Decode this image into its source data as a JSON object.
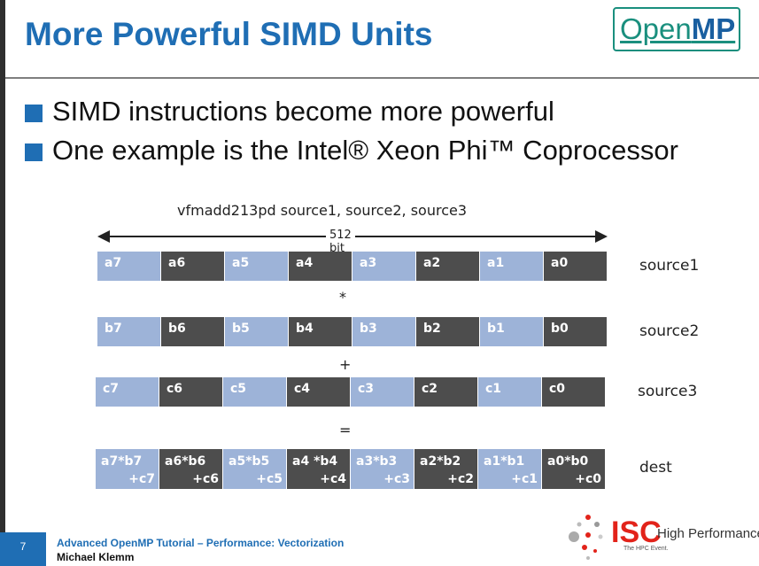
{
  "slide": {
    "title": "More Powerful SIMD Units",
    "bullets": [
      "SIMD instructions become more powerful",
      "One example is the Intel® Xeon Phi™ Coprocessor"
    ]
  },
  "logo": {
    "open": "Open",
    "mp": "MP"
  },
  "diagram": {
    "instruction": "vfmadd213pd source1, source2, source3",
    "bit_width": "512 bit",
    "ops": [
      "*",
      "+",
      "="
    ],
    "rows": [
      {
        "label": "source1",
        "cells": [
          "a7",
          "a6",
          "a5",
          "a4",
          "a3",
          "a2",
          "a1",
          "a0"
        ]
      },
      {
        "label": "source2",
        "cells": [
          "b7",
          "b6",
          "b5",
          "b4",
          "b3",
          "b2",
          "b1",
          "b0"
        ]
      },
      {
        "label": "source3",
        "cells": [
          "c7",
          "c6",
          "c5",
          "c4",
          "c3",
          "c2",
          "c1",
          "c0"
        ]
      }
    ],
    "dest": {
      "label": "dest",
      "cells": [
        {
          "l1": "a7*b7",
          "l2": "+c7"
        },
        {
          "l1": "a6*b6",
          "l2": "+c6"
        },
        {
          "l1": "a5*b5",
          "l2": "+c5"
        },
        {
          "l1": "a4 *b4",
          "l2": "+c4"
        },
        {
          "l1": "a3*b3",
          "l2": "+c3"
        },
        {
          "l1": "a2*b2",
          "l2": "+c2"
        },
        {
          "l1": "a1*b1",
          "l2": "+c1"
        },
        {
          "l1": "a0*b0",
          "l2": "+c0"
        }
      ]
    }
  },
  "footer": {
    "page_number": "7",
    "line1": "Advanced OpenMP Tutorial – Performance: Vectorization",
    "line2": "Michael Klemm"
  },
  "isc": {
    "mark": "ISC",
    "tagline": "High Performance",
    "sub": "The HPC Event."
  },
  "colors": {
    "title": "#1f6eb4",
    "cell_light": "#9db3d8",
    "cell_dark": "#4d4d4d",
    "isc_red": "#e2231a",
    "logo_teal": "#1a8f7e"
  }
}
